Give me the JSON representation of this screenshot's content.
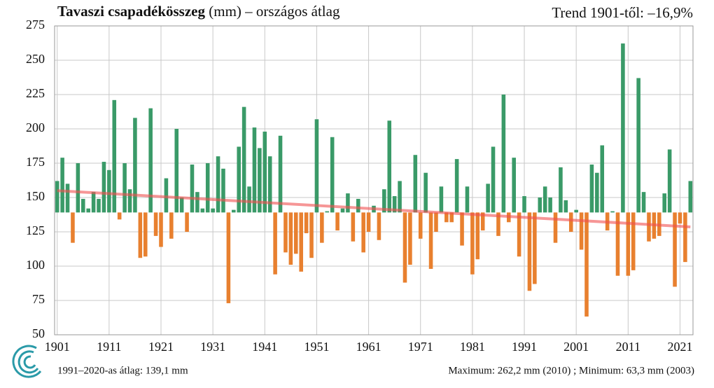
{
  "chart_data": {
    "type": "bar",
    "title": "Tavaszi csapadékösszeg",
    "title_suffix": " (mm) – országos átlag",
    "trend_label": "Trend 1901-től: –16,9%",
    "note_left": "1991–2020-as átlag:  139,1 mm",
    "note_right": "Maximum:  262,2 mm (2010) ; Minimum:  63,3 mm (2003)",
    "baseline": 139.1,
    "colors": {
      "above": "#3a9a68",
      "below": "#e8802f",
      "trend": "#f05050"
    },
    "x": [
      1901,
      1902,
      1903,
      1904,
      1905,
      1906,
      1907,
      1908,
      1909,
      1910,
      1911,
      1912,
      1913,
      1914,
      1915,
      1916,
      1917,
      1918,
      1919,
      1920,
      1921,
      1922,
      1923,
      1924,
      1925,
      1926,
      1927,
      1928,
      1929,
      1930,
      1931,
      1932,
      1933,
      1934,
      1935,
      1936,
      1937,
      1938,
      1939,
      1940,
      1941,
      1942,
      1943,
      1944,
      1945,
      1946,
      1947,
      1948,
      1949,
      1950,
      1951,
      1952,
      1953,
      1954,
      1955,
      1956,
      1957,
      1958,
      1959,
      1960,
      1961,
      1962,
      1963,
      1964,
      1965,
      1966,
      1967,
      1968,
      1969,
      1970,
      1971,
      1972,
      1973,
      1974,
      1975,
      1976,
      1977,
      1978,
      1979,
      1980,
      1981,
      1982,
      1983,
      1984,
      1985,
      1986,
      1987,
      1988,
      1989,
      1990,
      1991,
      1992,
      1993,
      1994,
      1995,
      1996,
      1997,
      1998,
      1999,
      2000,
      2001,
      2002,
      2003,
      2004,
      2005,
      2006,
      2007,
      2008,
      2009,
      2010,
      2011,
      2012,
      2013,
      2014,
      2015,
      2016,
      2017,
      2018,
      2019,
      2020,
      2021,
      2022,
      2023
    ],
    "values": [
      162,
      179,
      160,
      117,
      175,
      149,
      142,
      154,
      149,
      176,
      170,
      221,
      134,
      175,
      156,
      208,
      106,
      107,
      215,
      122,
      114,
      164,
      120,
      200,
      150,
      125,
      174,
      154,
      142,
      175,
      142,
      180,
      171,
      73,
      141,
      187,
      216,
      158,
      201,
      186,
      198,
      180,
      94,
      195,
      110,
      101,
      109,
      96,
      124,
      106,
      207,
      117,
      140,
      194,
      126,
      142,
      153,
      118,
      149,
      110,
      125,
      144,
      119,
      156,
      206,
      151,
      162,
      88,
      101,
      181,
      120,
      168,
      98,
      125,
      158,
      132,
      132,
      178,
      115,
      158,
      94,
      105,
      126,
      160,
      187,
      122,
      225,
      132,
      179,
      107,
      151,
      82,
      87,
      150,
      158,
      150,
      117,
      172,
      148,
      125,
      141,
      112,
      63.3,
      174,
      168,
      188,
      126,
      140,
      93,
      262.2,
      93,
      97,
      237,
      154,
      118,
      120,
      122,
      153,
      185,
      85,
      131,
      103,
      162
    ],
    "trend": {
      "x": [
        1901,
        2023
      ],
      "values": [
        155,
        128.6
      ]
    },
    "xlim": [
      1900.5,
      2023.5
    ],
    "xticks": [
      1901,
      1911,
      1921,
      1931,
      1941,
      1951,
      1961,
      1971,
      1981,
      1991,
      2001,
      2011,
      2021
    ],
    "ylim": [
      50,
      275
    ],
    "yticks": [
      50,
      75,
      100,
      125,
      150,
      175,
      200,
      225,
      250,
      275
    ],
    "grid": true
  }
}
